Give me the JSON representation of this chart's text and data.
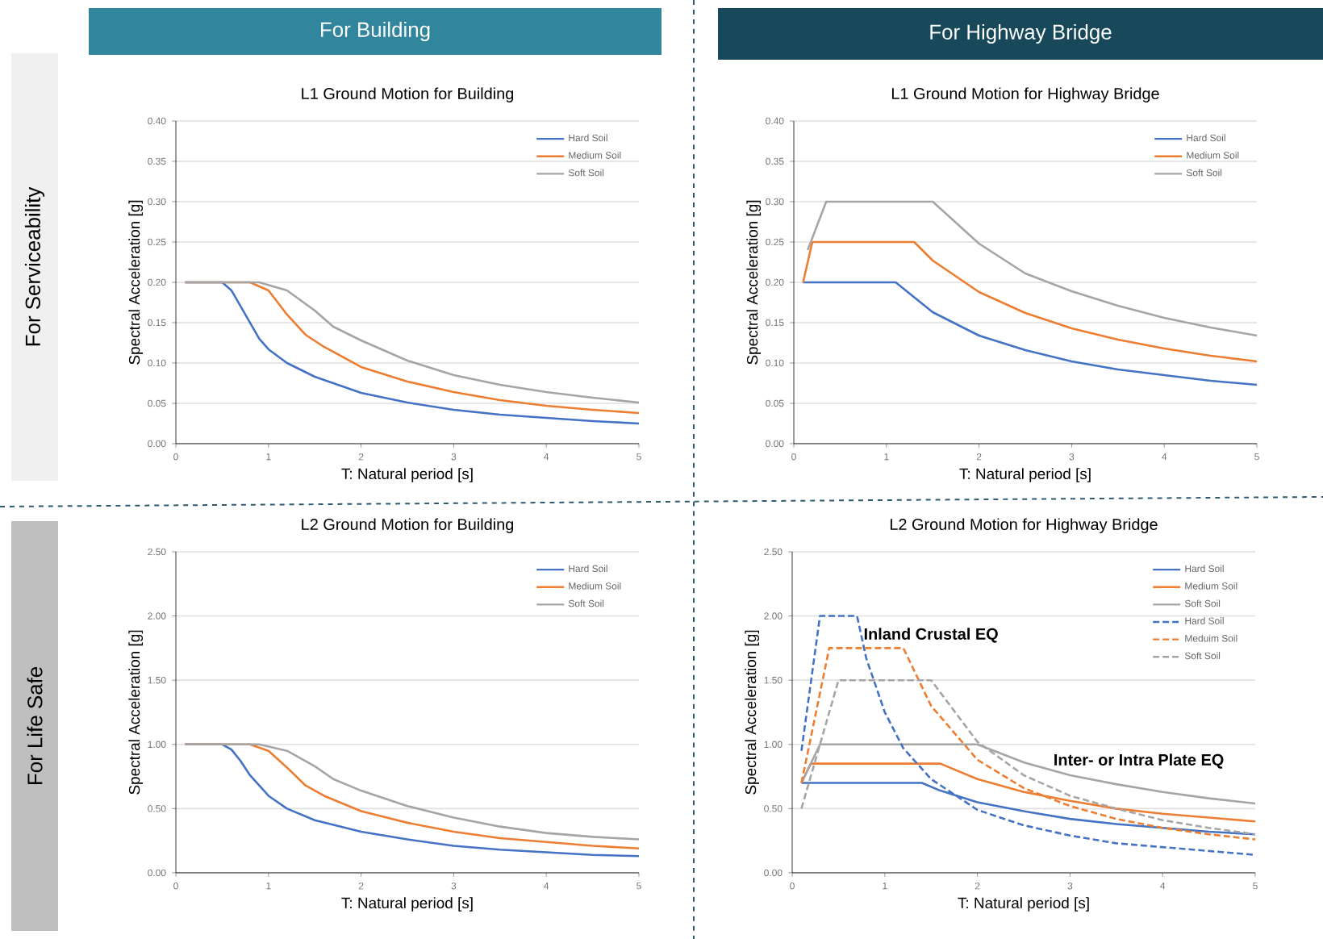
{
  "chart_data": [
    {
      "type": "line",
      "title": "L1 Ground Motion for Building",
      "xlabel": "T: Natural period [s]",
      "ylabel": "Spectral Acceleration [g]",
      "annotations": [
        "For Building",
        "For Serviceability"
      ],
      "xlim": [
        0,
        5
      ],
      "xticks": [
        0,
        1,
        2,
        3,
        4,
        5
      ],
      "ylim": [
        0,
        0.4
      ],
      "yticks": [
        {
          "value": 0,
          "label": "0.00"
        },
        {
          "value": 0.05,
          "label": "0.05"
        },
        {
          "value": 0.1,
          "label": "0.10"
        },
        {
          "value": 0.15,
          "label": "0.15"
        },
        {
          "value": 0.2,
          "label": "0.20"
        },
        {
          "value": 0.25,
          "label": "0.25"
        },
        {
          "value": 0.3,
          "label": "0.30"
        },
        {
          "value": 0.35,
          "label": "0.35"
        },
        {
          "value": 0.4,
          "label": "0.40"
        }
      ],
      "grid": "y",
      "legend": "top right",
      "series": [
        {
          "name": "Hard Soil",
          "color": "#4472c4",
          "x": [
            0.1,
            0.5,
            0.6,
            0.7,
            0.8,
            0.9,
            1.0,
            1.2,
            1.5,
            2,
            2.5,
            3,
            3.5,
            4,
            4.5,
            5
          ],
          "values": [
            0.2,
            0.2,
            0.19,
            0.17,
            0.15,
            0.13,
            0.117,
            0.1,
            0.083,
            0.063,
            0.051,
            0.042,
            0.036,
            0.032,
            0.028,
            0.025
          ]
        },
        {
          "name": "Medium Soil",
          "color": "#ed7d31",
          "x": [
            0.1,
            0.8,
            1.0,
            1.2,
            1.4,
            1.6,
            2,
            2.5,
            3,
            3.5,
            4,
            4.5,
            5
          ],
          "values": [
            0.2,
            0.2,
            0.19,
            0.16,
            0.135,
            0.12,
            0.095,
            0.077,
            0.064,
            0.054,
            0.047,
            0.042,
            0.038
          ]
        },
        {
          "name": "Soft Soil",
          "color": "#a5a5a5",
          "x": [
            0.1,
            0.9,
            1.2,
            1.5,
            1.7,
            2,
            2.5,
            3,
            3.5,
            4,
            4.5,
            5
          ],
          "values": [
            0.2,
            0.2,
            0.19,
            0.165,
            0.145,
            0.128,
            0.103,
            0.085,
            0.073,
            0.064,
            0.057,
            0.051
          ]
        }
      ]
    },
    {
      "type": "line",
      "title": "L1 Ground Motion for Highway Bridge",
      "xlabel": "T: Natural period [s]",
      "ylabel": "Spectral Acceleration [g]",
      "annotations": [
        "For Highway Bridge"
      ],
      "xlim": [
        0,
        5
      ],
      "xticks": [
        0,
        1,
        2,
        3,
        4,
        5
      ],
      "ylim": [
        0,
        0.4
      ],
      "yticks": [
        {
          "value": 0,
          "label": "0.00"
        },
        {
          "value": 0.05,
          "label": "0.05"
        },
        {
          "value": 0.1,
          "label": "0.10"
        },
        {
          "value": 0.15,
          "label": "0.15"
        },
        {
          "value": 0.2,
          "label": "0.20"
        },
        {
          "value": 0.25,
          "label": "0.25"
        },
        {
          "value": 0.3,
          "label": "0.30"
        },
        {
          "value": 0.35,
          "label": "0.35"
        },
        {
          "value": 0.4,
          "label": "0.40"
        }
      ],
      "grid": "y",
      "legend": "top right",
      "series": [
        {
          "name": "Hard Soil",
          "color": "#4472c4",
          "x": [
            0.1,
            1.1,
            1.5,
            2,
            2.5,
            3,
            3.5,
            4,
            4.5,
            5
          ],
          "values": [
            0.2,
            0.2,
            0.163,
            0.134,
            0.116,
            0.102,
            0.092,
            0.085,
            0.078,
            0.073
          ]
        },
        {
          "name": "Medium Soil",
          "color": "#ed7d31",
          "x": [
            0.1,
            0.2,
            1.3,
            1.5,
            2,
            2.5,
            3,
            3.5,
            4,
            4.5,
            5
          ],
          "values": [
            0.2,
            0.25,
            0.25,
            0.227,
            0.188,
            0.162,
            0.143,
            0.129,
            0.118,
            0.109,
            0.102
          ]
        },
        {
          "name": "Soft Soil",
          "color": "#a5a5a5",
          "x": [
            0.15,
            0.35,
            1.5,
            2,
            2.5,
            3,
            3.5,
            4,
            4.5,
            5
          ],
          "values": [
            0.24,
            0.3,
            0.3,
            0.248,
            0.211,
            0.189,
            0.171,
            0.156,
            0.144,
            0.134
          ]
        }
      ]
    },
    {
      "type": "line",
      "title": "L2 Ground Motion for Building",
      "xlabel": "T: Natural period [s]",
      "ylabel": "Spectral Acceleration [g]",
      "annotations": [
        "For Life Safe"
      ],
      "xlim": [
        0,
        5
      ],
      "xticks": [
        0,
        1,
        2,
        3,
        4,
        5
      ],
      "ylim": [
        0,
        2.5
      ],
      "yticks": [
        {
          "value": 0,
          "label": "0.00"
        },
        {
          "value": 0.5,
          "label": "0.50"
        },
        {
          "value": 1,
          "label": "1.00"
        },
        {
          "value": 1.5,
          "label": "1.50"
        },
        {
          "value": 2,
          "label": "2.00"
        },
        {
          "value": 2.5,
          "label": "2.50"
        }
      ],
      "grid": "y",
      "legend": "top right",
      "series": [
        {
          "name": "Hard Soil",
          "color": "#4472c4",
          "x": [
            0.1,
            0.5,
            0.6,
            0.7,
            0.8,
            0.9,
            1.0,
            1.2,
            1.5,
            2,
            2.5,
            3,
            3.5,
            4,
            4.5,
            5
          ],
          "values": [
            1.0,
            1.0,
            0.96,
            0.87,
            0.76,
            0.68,
            0.6,
            0.5,
            0.41,
            0.32,
            0.26,
            0.21,
            0.18,
            0.16,
            0.14,
            0.13
          ]
        },
        {
          "name": "Medium Soil",
          "color": "#ed7d31",
          "x": [
            0.1,
            0.8,
            1.0,
            1.2,
            1.4,
            1.6,
            2,
            2.5,
            3,
            3.5,
            4,
            4.5,
            5
          ],
          "values": [
            1.0,
            1.0,
            0.95,
            0.82,
            0.68,
            0.6,
            0.48,
            0.39,
            0.32,
            0.27,
            0.24,
            0.21,
            0.19
          ]
        },
        {
          "name": "Soft Soil",
          "color": "#a5a5a5",
          "x": [
            0.1,
            0.9,
            1.2,
            1.5,
            1.7,
            2,
            2.5,
            3,
            3.5,
            4,
            4.5,
            5
          ],
          "values": [
            1.0,
            1.0,
            0.95,
            0.83,
            0.73,
            0.64,
            0.52,
            0.43,
            0.36,
            0.31,
            0.28,
            0.26
          ]
        }
      ]
    },
    {
      "type": "line",
      "title": "L2 Ground Motion for Highway Bridge",
      "xlabel": "T: Natural period [s]",
      "ylabel": "Spectral Acceleration [g]",
      "annotations": [
        {
          "text": "Inland Crustal EQ",
          "x": 0.75,
          "y": 1.85
        },
        {
          "text": "Inter- or Intra Plate EQ",
          "x": 2.8,
          "y": 0.87
        }
      ],
      "xlim": [
        0,
        5
      ],
      "xticks": [
        0,
        1,
        2,
        3,
        4,
        5
      ],
      "ylim": [
        0,
        2.5
      ],
      "yticks": [
        {
          "value": 0,
          "label": "0.00"
        },
        {
          "value": 0.5,
          "label": "0.50"
        },
        {
          "value": 1,
          "label": "1.00"
        },
        {
          "value": 1.5,
          "label": "1.50"
        },
        {
          "value": 2,
          "label": "2.00"
        },
        {
          "value": 2.5,
          "label": "2.50"
        }
      ],
      "grid": "y",
      "legend": "top right",
      "series": [
        {
          "name": "Hard Soil",
          "color": "#4472c4",
          "x": [
            0.1,
            0.2,
            1.4,
            1.6,
            2,
            2.5,
            3,
            3.5,
            4,
            4.5,
            5
          ],
          "values": [
            0.7,
            0.7,
            0.7,
            0.64,
            0.55,
            0.48,
            0.42,
            0.38,
            0.35,
            0.32,
            0.3
          ]
        },
        {
          "name": "Medium Soil",
          "color": "#ed7d31",
          "x": [
            0.1,
            0.2,
            1.6,
            2,
            2.5,
            3,
            3.5,
            4,
            4.5,
            5
          ],
          "values": [
            0.7,
            0.85,
            0.85,
            0.73,
            0.63,
            0.56,
            0.5,
            0.46,
            0.43,
            0.4
          ]
        },
        {
          "name": "Soft Soil",
          "color": "#a5a5a5",
          "x": [
            0.1,
            0.3,
            2.0,
            2.5,
            3,
            3.5,
            4,
            4.5,
            5
          ],
          "values": [
            0.7,
            1.0,
            1.0,
            0.86,
            0.76,
            0.69,
            0.63,
            0.58,
            0.54
          ]
        },
        {
          "name": "Hard Soil",
          "color": "#4472c4",
          "line_style": "dashed",
          "x": [
            0.1,
            0.3,
            0.7,
            0.8,
            1.0,
            1.2,
            1.5,
            2,
            2.5,
            3,
            3.5,
            4,
            4.5,
            5
          ],
          "values": [
            0.95,
            2.0,
            2.0,
            1.67,
            1.25,
            0.97,
            0.73,
            0.49,
            0.37,
            0.29,
            0.23,
            0.2,
            0.17,
            0.14
          ]
        },
        {
          "name": "Meduim Soil",
          "color": "#ed7d31",
          "line_style": "dashed",
          "x": [
            0.1,
            0.4,
            1.2,
            1.5,
            2,
            2.5,
            3,
            3.5,
            4,
            4.5,
            5
          ],
          "values": [
            0.7,
            1.75,
            1.75,
            1.3,
            0.88,
            0.66,
            0.52,
            0.42,
            0.35,
            0.3,
            0.26
          ]
        },
        {
          "name": "Soft Soil",
          "color": "#a5a5a5",
          "line_style": "dashed",
          "x": [
            0.1,
            0.5,
            1.5,
            2,
            2.5,
            3,
            3.5,
            4,
            4.5,
            5
          ],
          "values": [
            0.5,
            1.5,
            1.5,
            1.02,
            0.76,
            0.6,
            0.5,
            0.41,
            0.35,
            0.3
          ]
        }
      ]
    }
  ]
}
